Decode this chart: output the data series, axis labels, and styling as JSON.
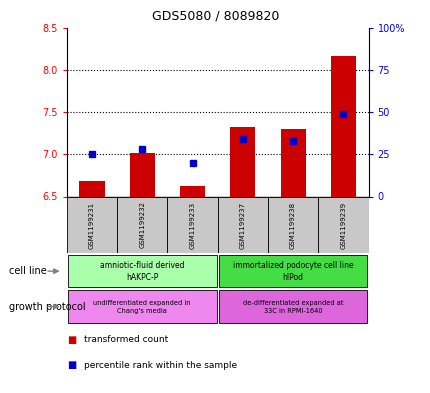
{
  "title": "GDS5080 / 8089820",
  "samples": [
    "GSM1199231",
    "GSM1199232",
    "GSM1199233",
    "GSM1199237",
    "GSM1199238",
    "GSM1199239"
  ],
  "red_values": [
    6.68,
    7.02,
    6.62,
    7.32,
    7.3,
    8.16
  ],
  "blue_values": [
    25,
    28,
    20,
    34,
    33,
    49
  ],
  "ylim_left": [
    6.5,
    8.5
  ],
  "ylim_right": [
    0,
    100
  ],
  "yticks_left": [
    6.5,
    7.0,
    7.5,
    8.0,
    8.5
  ],
  "yticks_right": [
    0,
    25,
    50,
    75,
    100
  ],
  "ytick_labels_right": [
    "0",
    "25",
    "50",
    "75",
    "100%"
  ],
  "cell_line_group1": "amniotic-fluid derived\nhAKPC-P",
  "cell_line_group2": "immortalized podocyte cell line\nhIPod",
  "growth_protocol_group1": "undifferentiated expanded in\nChang's media",
  "growth_protocol_group2": "de-differentiated expanded at\n33C in RPMI-1640",
  "cell_line_color1": "#aaffaa",
  "cell_line_color2": "#44dd44",
  "growth_protocol_color1": "#ee88ee",
  "growth_protocol_color2": "#dd66dd",
  "bar_color": "#cc0000",
  "dot_color": "#0000cc",
  "legend_square_red": "#cc0000",
  "legend_square_blue": "#0000cc",
  "legend_text_red": "transformed count",
  "legend_text_blue": "percentile rank within the sample",
  "cell_line_label": "cell line",
  "growth_protocol_label": "growth protocol",
  "sample_bg_color": "#c8c8c8",
  "arrow_color": "#808080"
}
